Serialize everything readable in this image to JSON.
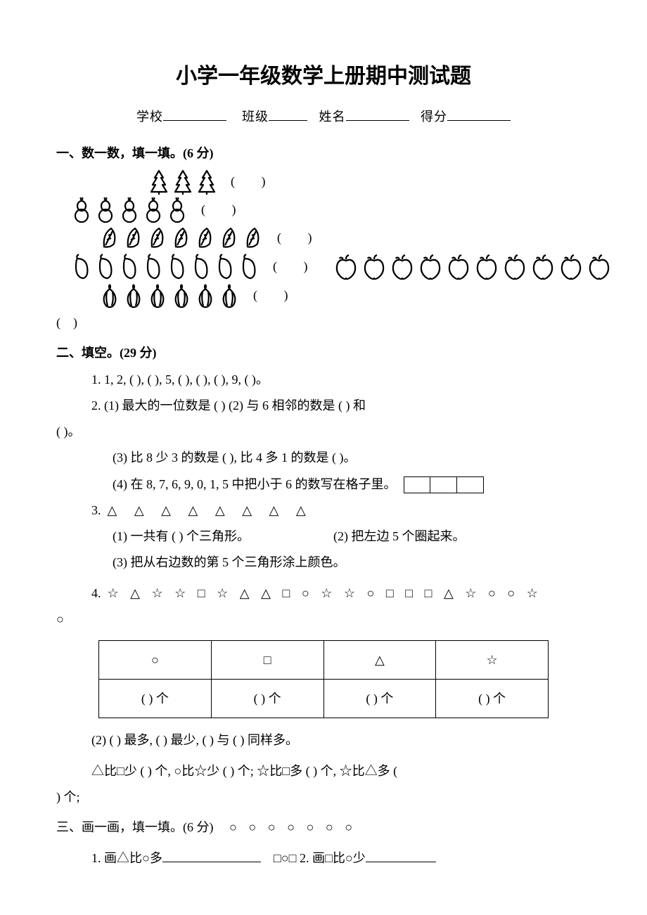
{
  "document": {
    "title": "小学一年级数学上册期中测试题",
    "title_fontsize": 30,
    "body_fontsize": 18,
    "background_color": "#ffffff",
    "text_color": "#000000"
  },
  "info": {
    "school_label": "学校",
    "class_label": "班级",
    "name_label": "姓名",
    "score_label": "得分"
  },
  "section1": {
    "heading": "一、数一数，填一填。(6 分)",
    "rows": [
      {
        "icon": "tree",
        "count": 3
      },
      {
        "icon": "gourd",
        "count": 5
      },
      {
        "icon": "leaf",
        "count": 7
      },
      {
        "icon": "chili",
        "count": 8
      },
      {
        "icon": "garlic",
        "count": 6
      }
    ],
    "apples_count": 10,
    "blank_label": "(       )"
  },
  "section2": {
    "heading": "二、填空。(29 分)",
    "q1": "1. 1, 2, (      ), (      ), 5, (      ), (      ), (      ), 9, (      )。",
    "q2_1": "2. (1) 最大的一位数是 (      )      (2) 与 6 相邻的数是 (      ) 和",
    "q2_1b": "(      )。",
    "q2_3": "(3) 比 8 少 3 的数是 (       ), 比 4 多 1 的数是 (       )。",
    "q2_4": "(4) 在 8, 7, 6, 9, 0, 1, 5 中把小于 6 的数写在格子里。",
    "q3_label": "3.",
    "q3_triangles": "△ △ △ △ △ △ △ △",
    "q3_1": "(1) 一共有 (      ) 个三角形。",
    "q3_2": "(2) 把左边 5 个圈起来。",
    "q3_3": "(3) 把从右边数的第 5 个三角形涂上颜色。",
    "q4_label": "4.",
    "q4_seq": "☆ △ ☆ ☆ □ ☆ △ △ □ ○ ☆ ☆ ○ □ □ □ △ ☆ ○ ○ ☆",
    "q4_extra": "○",
    "q4_table": {
      "headers": [
        "○",
        "□",
        "△",
        "☆"
      ],
      "cells": [
        "(      ) 个",
        "(      ) 个",
        "(      ) 个",
        "(      ) 个"
      ]
    },
    "q4_2": "(2) (        ) 最多, (        ) 最少, (        ) 与 (        ) 同样多。",
    "q4_compare": "△比□少 (    ) 个,  ○比☆少 (    ) 个;   ☆比□多 (    ) 个, ☆比△多 (",
    "q4_compare_tail": ") 个;"
  },
  "section3": {
    "heading": "三、画一画，填一填。(6 分)",
    "circles": "○ ○ ○ ○ ○ ○ ○",
    "q1_pre": "1. 画△比○多",
    "q1_mid": "□○□   2. 画□比○少"
  },
  "grid_cells": 3
}
